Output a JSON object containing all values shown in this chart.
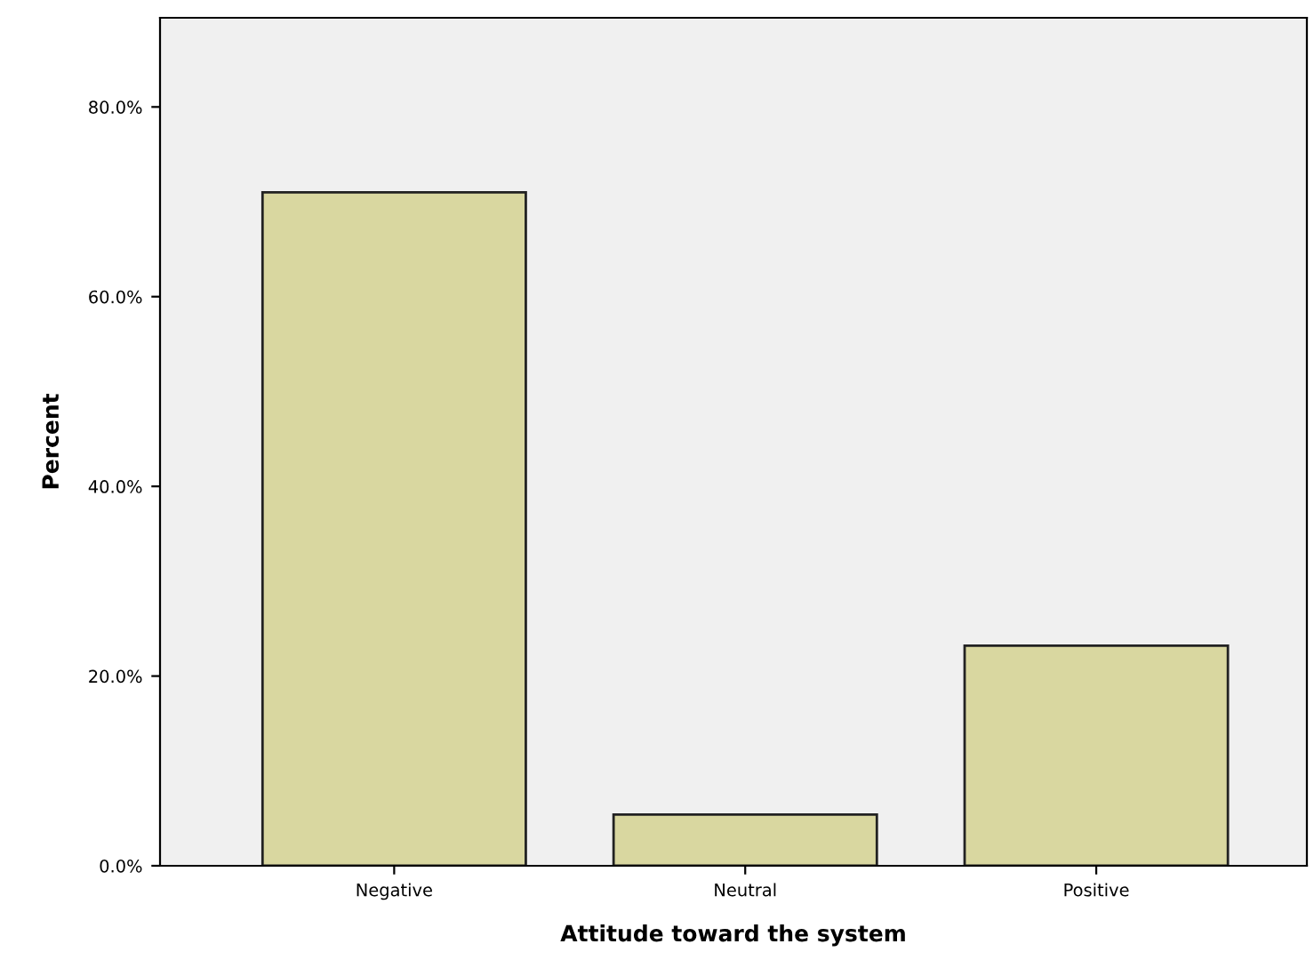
{
  "chart_data": {
    "type": "bar",
    "xlabel": "Attitude toward the system",
    "ylabel": "Percent",
    "categories": [
      "Negative",
      "Neutral",
      "Positive"
    ],
    "values": [
      71.0,
      5.4,
      23.2
    ],
    "color": "#d9d7a0",
    "ylim": [
      0,
      89.4
    ],
    "yticks": [
      {
        "value": 0,
        "label": "0.0%"
      },
      {
        "value": 20,
        "label": "20.0%"
      },
      {
        "value": 40,
        "label": "40.0%"
      },
      {
        "value": 60,
        "label": "60.0%"
      },
      {
        "value": 80,
        "label": "80.0%"
      }
    ],
    "grid": false
  }
}
